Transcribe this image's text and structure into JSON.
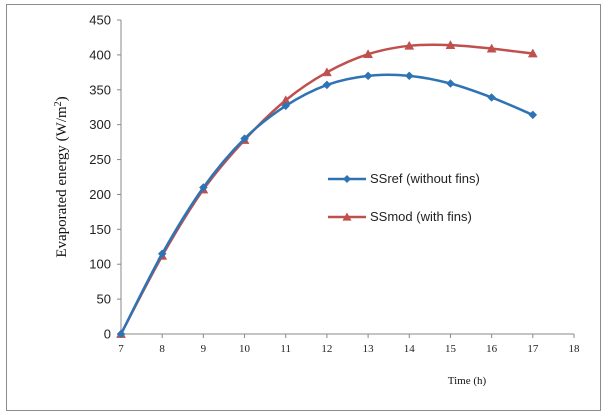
{
  "chart_data": {
    "type": "line",
    "title": "",
    "xlabel": "Time (h)",
    "ylabel": "Evaporated energy (W/m²)",
    "ylabel_base": "Evaporated energy (W/m",
    "ylabel_sup": "2",
    "ylabel_end": ")",
    "xlim": [
      7,
      18
    ],
    "ylim": [
      0,
      450
    ],
    "xticks": [
      "7",
      "8",
      "9",
      "10",
      "11",
      "12",
      "13",
      "14",
      "15",
      "16",
      "17",
      "18"
    ],
    "yticks": [
      "0",
      "50",
      "100",
      "150",
      "200",
      "250",
      "300",
      "350",
      "400",
      "450"
    ],
    "grid": false,
    "legend_position": "right-middle",
    "x": [
      7,
      8,
      9,
      10,
      11,
      12,
      13,
      14,
      15,
      16,
      17
    ],
    "series": [
      {
        "name": "SSref (without fins)",
        "color": "#2E74B5",
        "marker": "diamond",
        "values": [
          0,
          115,
          210,
          280,
          327,
          357,
          370,
          370,
          359,
          339,
          314
        ]
      },
      {
        "name": "SSmod (with fins)",
        "color": "#C0504D",
        "marker": "triangle",
        "values": [
          0,
          112,
          207,
          278,
          335,
          375,
          401,
          413,
          414,
          409,
          402
        ]
      }
    ]
  }
}
